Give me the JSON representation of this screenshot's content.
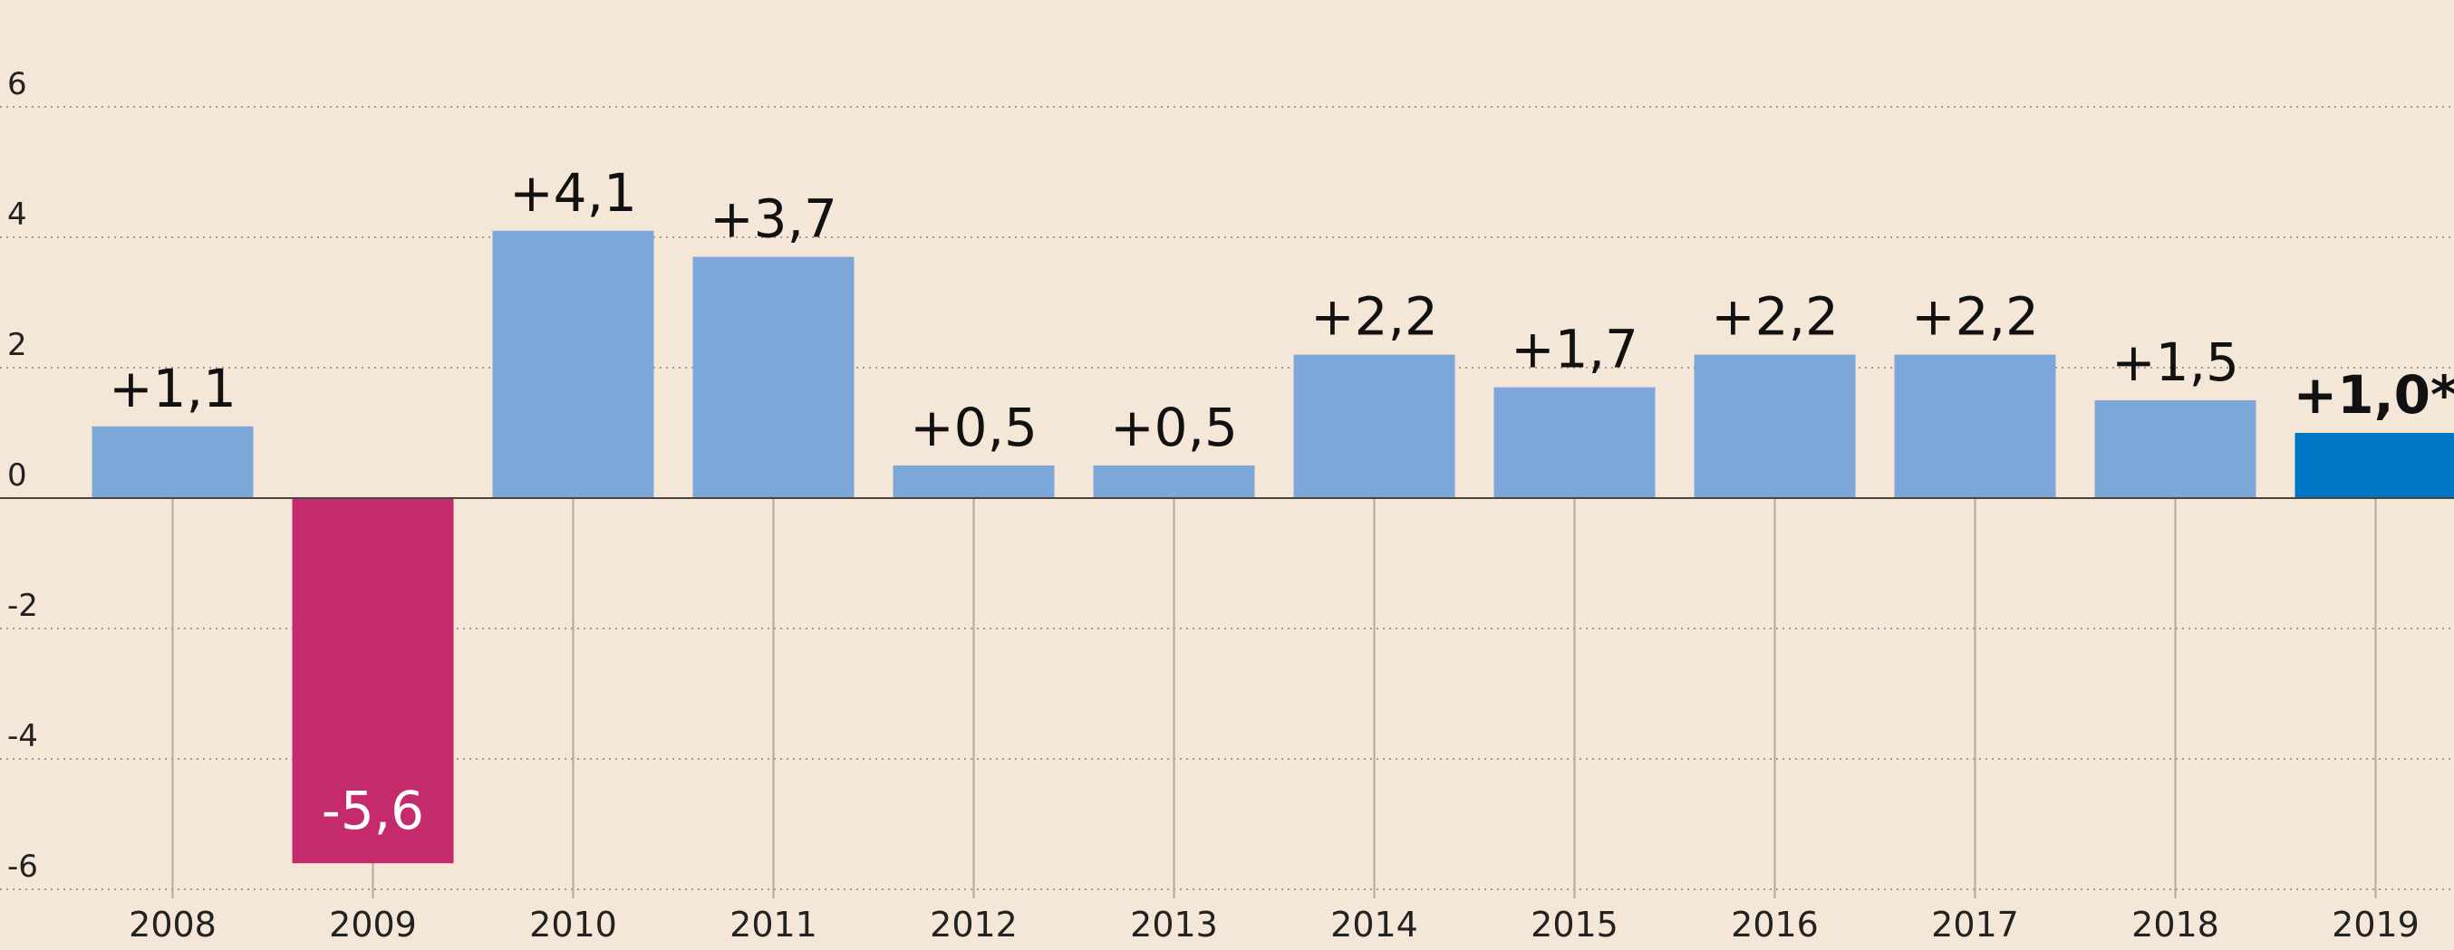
{
  "chart_data": {
    "type": "bar",
    "title": "",
    "xlabel": "",
    "ylabel": "",
    "ylim": [
      -6,
      6
    ],
    "yticks": [
      6,
      4,
      2,
      0,
      -2,
      -4,
      -6
    ],
    "ytick_labels": [
      "6",
      "4",
      "2",
      "0",
      "-2",
      "-4",
      "-6"
    ],
    "grid": true,
    "categories": [
      "2008",
      "2009",
      "2010",
      "2011",
      "2012",
      "2013",
      "2014",
      "2015",
      "2016",
      "2017",
      "2018",
      "2019"
    ],
    "values": [
      1.1,
      -5.6,
      4.1,
      3.7,
      0.5,
      0.5,
      2.2,
      1.7,
      2.2,
      2.2,
      1.5,
      1.0
    ],
    "data_labels": [
      "+1,1",
      "-5,6",
      "+4,1",
      "+3,7",
      "+0,5",
      "+0,5",
      "+2,2",
      "+1,7",
      "+2,2",
      "+2,2",
      "+1,5",
      "+1,0*"
    ],
    "colors": {
      "default": "#7ea7d9",
      "negative": "#c42a6c",
      "highlight": "#0077c6",
      "background": "#f5e7d8"
    },
    "highlight_index": 11
  }
}
